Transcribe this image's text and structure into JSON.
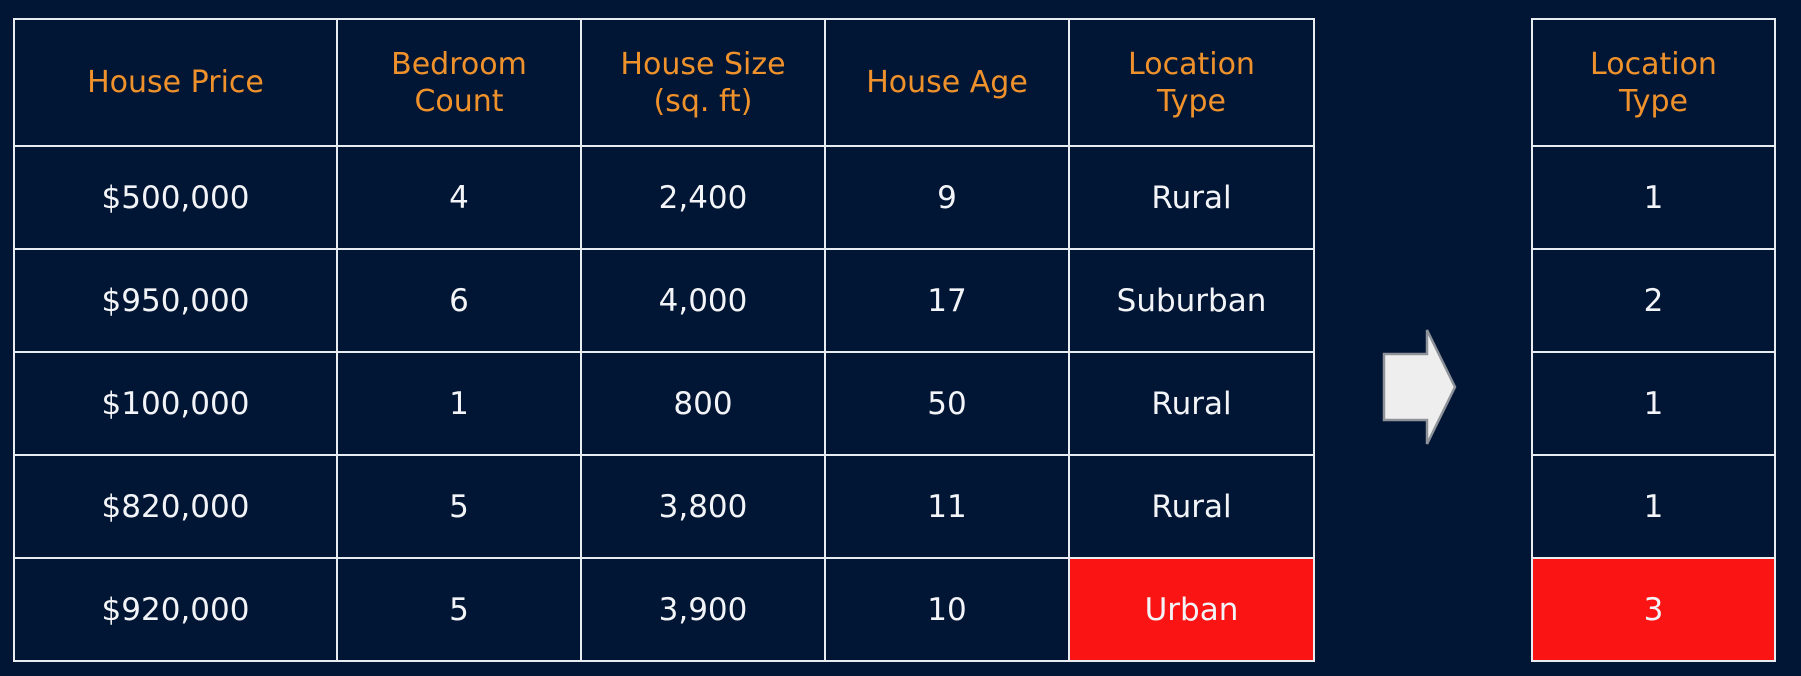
{
  "main_table": {
    "headers": [
      [
        "House Price"
      ],
      [
        "Bedroom",
        "Count"
      ],
      [
        "House Size",
        "(sq. ft)"
      ],
      [
        "House Age"
      ],
      [
        "Location",
        "Type"
      ]
    ],
    "rows": [
      [
        "$500,000",
        "4",
        "2,400",
        "9",
        "Rural"
      ],
      [
        "$950,000",
        "6",
        "4,000",
        "17",
        "Suburban"
      ],
      [
        "$100,000",
        "1",
        "800",
        "50",
        "Rural"
      ],
      [
        "$820,000",
        "5",
        "3,800",
        "11",
        "Rural"
      ],
      [
        "$920,000",
        "5",
        "3,900",
        "10",
        "Urban"
      ]
    ],
    "highlighted_row": 4
  },
  "encoded_table": {
    "header": [
      "Location",
      "Type"
    ],
    "rows": [
      "1",
      "2",
      "1",
      "1",
      "3"
    ],
    "highlighted_row": 4
  },
  "arrow": {
    "icon": "right-arrow-icon",
    "fill": "#EEEEEE"
  },
  "colors": {
    "background": "#011534",
    "header_text": "#F0922B",
    "cell_text": "#F2F4F7",
    "grid": "#E8EDF2",
    "highlight": "#FA1414"
  }
}
